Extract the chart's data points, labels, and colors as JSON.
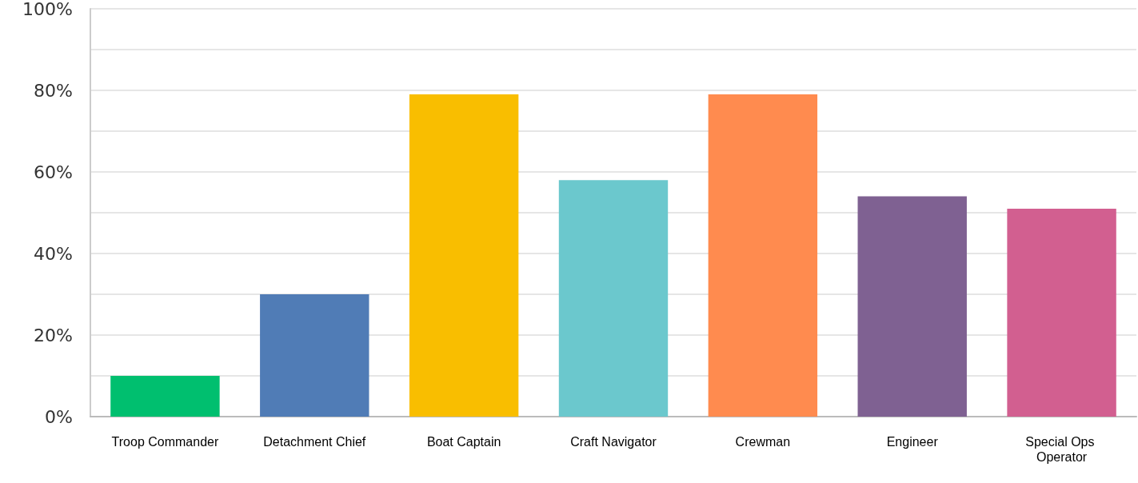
{
  "chart_data": {
    "type": "bar",
    "categories": [
      "Troop Commander",
      "Detachment Chief",
      "Boat Captain",
      "Craft Navigator",
      "Crewman",
      "Engineer",
      "Special Ops Operator"
    ],
    "values": [
      10,
      30,
      79,
      58,
      79,
      54,
      51
    ],
    "colors": [
      "#00bf6f",
      "#507cb6",
      "#f9be00",
      "#6bc8cd",
      "#ff8b4f",
      "#7f6192",
      "#d25f90"
    ],
    "ylim": [
      0,
      100
    ],
    "yticks": [
      {
        "value": 0,
        "label": "0%"
      },
      {
        "value": 10,
        "label": null
      },
      {
        "value": 20,
        "label": "20%"
      },
      {
        "value": 30,
        "label": null
      },
      {
        "value": 40,
        "label": "40%"
      },
      {
        "value": 50,
        "label": null
      },
      {
        "value": 60,
        "label": "60%"
      },
      {
        "value": 70,
        "label": null
      },
      {
        "value": 80,
        "label": "80%"
      },
      {
        "value": 90,
        "label": null
      },
      {
        "value": 100,
        "label": "100%"
      }
    ],
    "grid": "y"
  }
}
